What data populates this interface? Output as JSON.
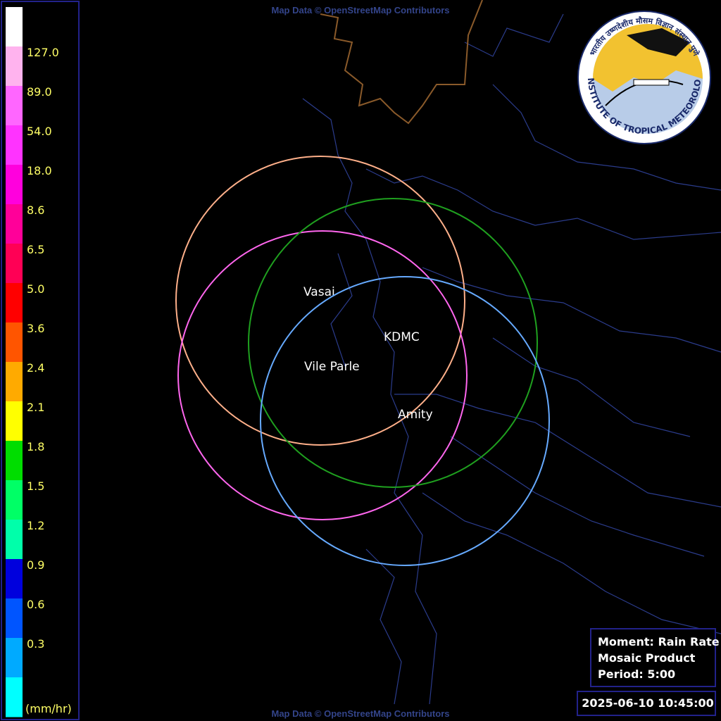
{
  "attribution": "Map Data © OpenStreetMap Contributors",
  "legend": {
    "colors": [
      "#ffffff",
      "#ffb3ee",
      "#ff66ff",
      "#ff33ff",
      "#ff00dd",
      "#ff0099",
      "#ff0055",
      "#ff0000",
      "#ff5500",
      "#ffaa00",
      "#ffff00",
      "#00dd00",
      "#00ff66",
      "#00ffaa",
      "#0000dd",
      "#0055ff",
      "#00aaff",
      "#00ffff"
    ],
    "labels": [
      "127.0",
      "89.0",
      "54.0",
      "18.0",
      "8.6",
      "6.5",
      "5.0",
      "3.6",
      "2.4",
      "2.1",
      "1.8",
      "1.5",
      "1.2",
      "0.9",
      "0.6",
      "0.3"
    ],
    "unit": "(mm/hr)"
  },
  "stations": [
    {
      "name": "Vasai",
      "color": "#ffb08a"
    },
    {
      "name": "Vile Parle",
      "color": "#ff66ee"
    },
    {
      "name": "KDMC",
      "color": "#1fa01f"
    },
    {
      "name": "Amity",
      "color": "#66aaff"
    }
  ],
  "logo": {
    "english": "INDIAN INSTITUTE OF TROPICAL METEOROLOGY PUNE",
    "hindi": "भारतीय उष्णदेशीय मौसम विज्ञान संस्थान पुणे"
  },
  "info": {
    "lines": [
      "Moment: Rain Rate",
      "Mosaic Product",
      "Period: 5:00"
    ],
    "timestamp": "2025-06-10 10:45:00"
  }
}
